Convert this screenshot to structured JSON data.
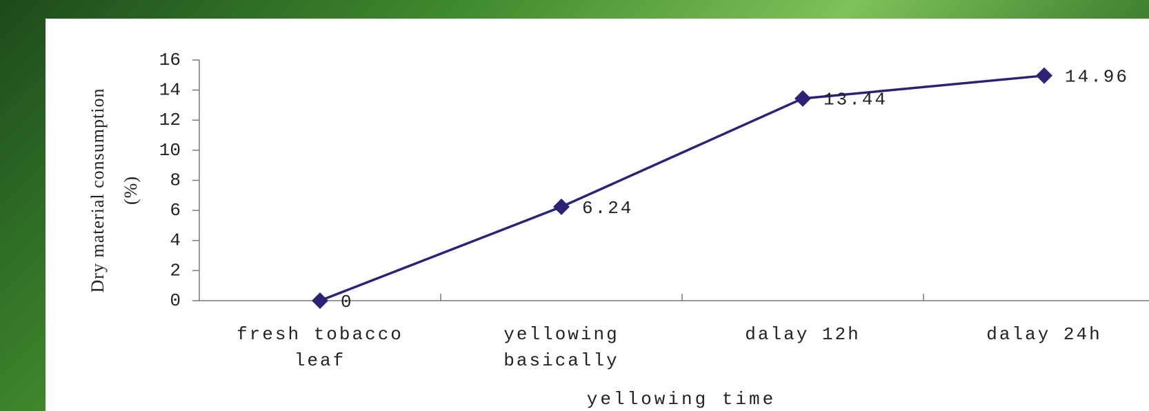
{
  "chart_data": {
    "type": "line",
    "y_label": [
      "Dry material consumption",
      "(%)"
    ],
    "x_label": "yellowing time",
    "categories": [
      "fresh tobacco leaf",
      "yellowing basically",
      "dalay 12h",
      "dalay 24h"
    ],
    "series": [
      {
        "name": "Dry material consumption",
        "color": "#2b2373",
        "values": [
          0,
          6.24,
          13.44,
          14.96
        ]
      }
    ],
    "ylim": [
      0,
      16
    ],
    "yticks": [
      0,
      2,
      4,
      6,
      8,
      10,
      12,
      14,
      16
    ],
    "grid": false
  }
}
